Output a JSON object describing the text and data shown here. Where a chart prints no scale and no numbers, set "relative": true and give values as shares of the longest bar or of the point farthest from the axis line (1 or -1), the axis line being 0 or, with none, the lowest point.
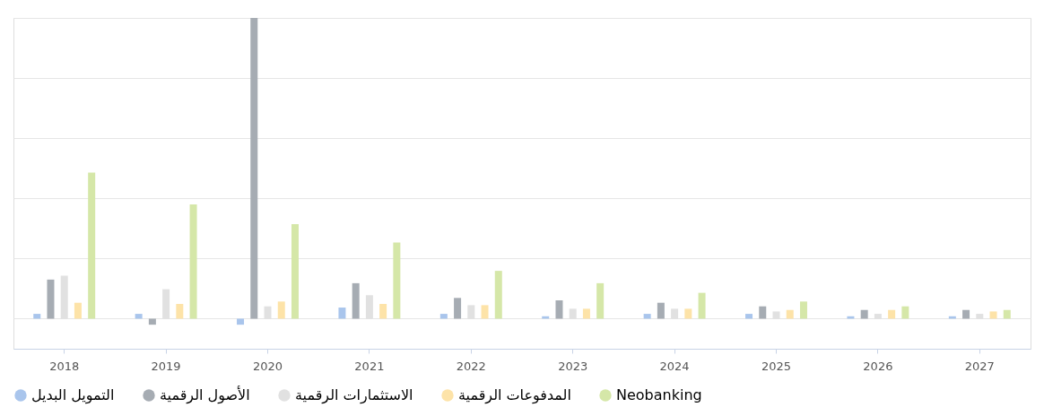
{
  "chart_data": {
    "type": "bar",
    "relative": true,
    "grid": "y",
    "legend": "bottom",
    "categories": [
      "2018",
      "2019",
      "2020",
      "2021",
      "2022",
      "2023",
      "2024",
      "2025",
      "2026",
      "2027"
    ],
    "series": [
      {
        "name": "التمويل البديل",
        "color": "#a9c5ec",
        "values": [
          0.016,
          0.016,
          -0.02,
          0.037,
          0.016,
          0.008,
          0.016,
          0.016,
          0.008,
          0.008
        ]
      },
      {
        "name": "الأصول الرقمية",
        "color": "#a6acb3",
        "values": [
          0.13,
          -0.02,
          1,
          0.118,
          0.069,
          0.061,
          0.053,
          0.041,
          0.029,
          0.029
        ]
      },
      {
        "name": "الاستثمارات الرقمية",
        "color": "#e1e1e1",
        "values": [
          0.143,
          0.098,
          0.041,
          0.078,
          0.045,
          0.033,
          0.033,
          0.024,
          0.016,
          0.016
        ]
      },
      {
        "name": "المدفوعات الرقمية",
        "color": "#fde3a8",
        "values": [
          0.053,
          0.049,
          0.057,
          0.049,
          0.045,
          0.033,
          0.033,
          0.029,
          0.029,
          0.024
        ]
      },
      {
        "name": "Neobanking",
        "color": "#d5e7a8",
        "values": [
          0.486,
          0.38,
          0.314,
          0.253,
          0.159,
          0.118,
          0.086,
          0.057,
          0.041,
          0.029
        ]
      }
    ]
  }
}
